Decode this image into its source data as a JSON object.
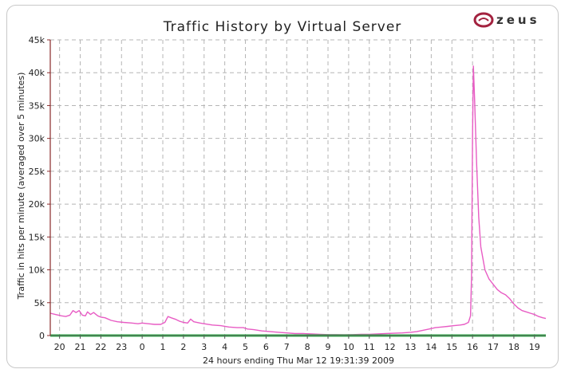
{
  "logo": {
    "text": "zeus"
  },
  "chart_data": {
    "type": "line",
    "title": "Traffic History by Virtual Server",
    "xlabel": "24 hours ending Thu Mar 12 19:31:39 2009",
    "ylabel": "Traffic in hits per minute (averaged over 5 minutes)",
    "ylim": [
      0,
      45000
    ],
    "yticks": [
      {
        "value": 0,
        "label": "0"
      },
      {
        "value": 5000,
        "label": "5k"
      },
      {
        "value": 10000,
        "label": "10k"
      },
      {
        "value": 15000,
        "label": "15k"
      },
      {
        "value": 20000,
        "label": "20k"
      },
      {
        "value": 25000,
        "label": "25k"
      },
      {
        "value": 30000,
        "label": "30k"
      },
      {
        "value": 35000,
        "label": "35k"
      },
      {
        "value": 40000,
        "label": "40k"
      },
      {
        "value": 45000,
        "label": "45k"
      }
    ],
    "xlim": [
      -0.45,
      23.55
    ],
    "xticks": [
      {
        "value": 0,
        "label": "20"
      },
      {
        "value": 1,
        "label": "21"
      },
      {
        "value": 2,
        "label": "22"
      },
      {
        "value": 3,
        "label": "23"
      },
      {
        "value": 4,
        "label": "0"
      },
      {
        "value": 5,
        "label": "1"
      },
      {
        "value": 6,
        "label": "2"
      },
      {
        "value": 7,
        "label": "3"
      },
      {
        "value": 8,
        "label": "4"
      },
      {
        "value": 9,
        "label": "5"
      },
      {
        "value": 10,
        "label": "6"
      },
      {
        "value": 11,
        "label": "7"
      },
      {
        "value": 12,
        "label": "8"
      },
      {
        "value": 13,
        "label": "9"
      },
      {
        "value": 14,
        "label": "10"
      },
      {
        "value": 15,
        "label": "11"
      },
      {
        "value": 16,
        "label": "12"
      },
      {
        "value": 17,
        "label": "13"
      },
      {
        "value": 18,
        "label": "14"
      },
      {
        "value": 19,
        "label": "15"
      },
      {
        "value": 20,
        "label": "16"
      },
      {
        "value": 21,
        "label": "17"
      },
      {
        "value": 22,
        "label": "18"
      },
      {
        "value": 23,
        "label": "19"
      }
    ],
    "grid": true,
    "series": [
      {
        "color": "#e85cc4",
        "points": [
          [
            -0.45,
            3400
          ],
          [
            -0.2,
            3200
          ],
          [
            0.1,
            3000
          ],
          [
            0.3,
            2900
          ],
          [
            0.5,
            3100
          ],
          [
            0.65,
            3800
          ],
          [
            0.8,
            3500
          ],
          [
            0.95,
            3800
          ],
          [
            1.1,
            3100
          ],
          [
            1.25,
            3000
          ],
          [
            1.35,
            3600
          ],
          [
            1.5,
            3200
          ],
          [
            1.65,
            3500
          ],
          [
            1.85,
            3000
          ],
          [
            2.0,
            2800
          ],
          [
            2.2,
            2700
          ],
          [
            2.5,
            2300
          ],
          [
            2.8,
            2100
          ],
          [
            3.1,
            2000
          ],
          [
            3.5,
            1900
          ],
          [
            3.8,
            1800
          ],
          [
            4.0,
            1900
          ],
          [
            4.3,
            1800
          ],
          [
            4.6,
            1700
          ],
          [
            4.9,
            1700
          ],
          [
            5.1,
            2000
          ],
          [
            5.25,
            2900
          ],
          [
            5.4,
            2700
          ],
          [
            5.6,
            2500
          ],
          [
            5.8,
            2200
          ],
          [
            6.0,
            2000
          ],
          [
            6.2,
            1900
          ],
          [
            6.35,
            2500
          ],
          [
            6.5,
            2100
          ],
          [
            6.8,
            1900
          ],
          [
            7.0,
            1800
          ],
          [
            7.4,
            1600
          ],
          [
            7.8,
            1500
          ],
          [
            8.2,
            1300
          ],
          [
            8.6,
            1200
          ],
          [
            8.9,
            1200
          ],
          [
            9.1,
            1000
          ],
          [
            9.4,
            900
          ],
          [
            9.8,
            700
          ],
          [
            10.2,
            600
          ],
          [
            10.6,
            500
          ],
          [
            11.0,
            400
          ],
          [
            11.4,
            300
          ],
          [
            11.8,
            300
          ],
          [
            12.2,
            250
          ],
          [
            12.6,
            200
          ],
          [
            13.0,
            150
          ],
          [
            13.4,
            150
          ],
          [
            13.8,
            120
          ],
          [
            14.2,
            150
          ],
          [
            14.6,
            200
          ],
          [
            15.0,
            200
          ],
          [
            15.4,
            250
          ],
          [
            15.8,
            300
          ],
          [
            16.2,
            350
          ],
          [
            16.6,
            400
          ],
          [
            17.0,
            500
          ],
          [
            17.3,
            600
          ],
          [
            17.6,
            800
          ],
          [
            17.9,
            1000
          ],
          [
            18.2,
            1200
          ],
          [
            18.5,
            1300
          ],
          [
            18.8,
            1400
          ],
          [
            19.1,
            1500
          ],
          [
            19.4,
            1600
          ],
          [
            19.6,
            1700
          ],
          [
            19.8,
            2000
          ],
          [
            19.9,
            3000
          ],
          [
            19.95,
            9000
          ],
          [
            20.0,
            30000
          ],
          [
            20.04,
            41000
          ],
          [
            20.1,
            36000
          ],
          [
            20.2,
            26000
          ],
          [
            20.3,
            18000
          ],
          [
            20.4,
            13500
          ],
          [
            20.6,
            10000
          ],
          [
            20.8,
            8600
          ],
          [
            21.0,
            7800
          ],
          [
            21.2,
            7000
          ],
          [
            21.4,
            6500
          ],
          [
            21.6,
            6200
          ],
          [
            21.8,
            5600
          ],
          [
            22.0,
            4800
          ],
          [
            22.2,
            4200
          ],
          [
            22.4,
            3800
          ],
          [
            22.6,
            3600
          ],
          [
            22.8,
            3400
          ],
          [
            23.0,
            3200
          ],
          [
            23.2,
            2900
          ],
          [
            23.4,
            2700
          ],
          [
            23.55,
            2600
          ]
        ]
      },
      {
        "color": "#2fb24a",
        "points": [
          [
            -0.45,
            0
          ],
          [
            23.55,
            0
          ]
        ]
      }
    ]
  }
}
